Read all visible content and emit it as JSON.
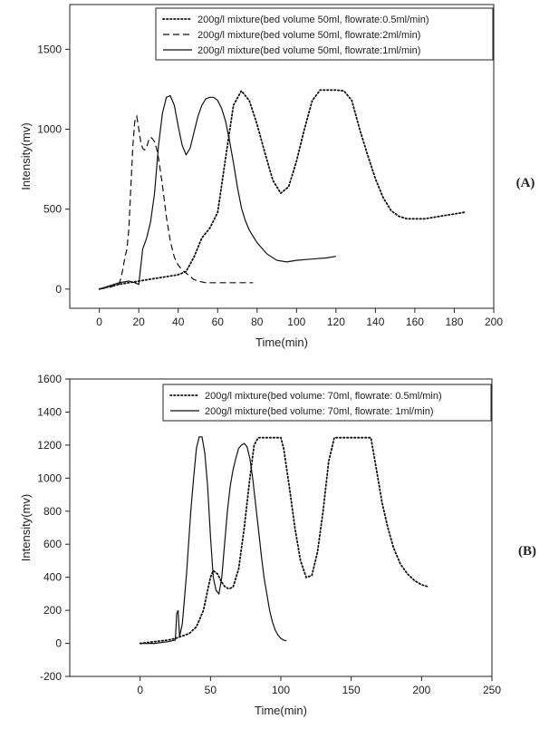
{
  "chart_data": [
    {
      "panel": "(A)",
      "type": "line",
      "title": "",
      "xlabel": "Time(min)",
      "ylabel": "Intensity(mv)",
      "xlim": [
        -15,
        200
      ],
      "ylim": [
        -120,
        1780
      ],
      "x_ticks": [
        0,
        20,
        40,
        60,
        80,
        100,
        120,
        140,
        160,
        180,
        200
      ],
      "y_ticks": [
        0,
        500,
        1000,
        1500
      ],
      "grid": false,
      "legend_position": "top-right",
      "series": [
        {
          "name": "200g/l mixture(bed volume 50ml, flowrate:0.5ml/min)",
          "style": "dotted",
          "x": [
            0,
            10,
            20,
            30,
            40,
            44,
            48,
            52,
            56,
            60,
            64,
            68,
            72,
            76,
            80,
            84,
            88,
            92,
            96,
            100,
            104,
            108,
            112,
            116,
            120,
            124,
            128,
            132,
            136,
            140,
            144,
            148,
            152,
            156,
            160,
            165,
            170,
            175,
            180,
            185
          ],
          "y": [
            0,
            30,
            50,
            70,
            90,
            110,
            200,
            320,
            380,
            480,
            820,
            1150,
            1240,
            1180,
            1030,
            850,
            680,
            600,
            640,
            800,
            1000,
            1180,
            1245,
            1245,
            1245,
            1240,
            1180,
            1000,
            840,
            690,
            570,
            490,
            455,
            440,
            440,
            440,
            450,
            460,
            470,
            480
          ]
        },
        {
          "name": "200g/l mixture(bed volume 50ml, flowrate:2ml/min)",
          "style": "dashed",
          "x": [
            0,
            5,
            10,
            11,
            12,
            13,
            14,
            15,
            16,
            17,
            18,
            19,
            20,
            21,
            22,
            23,
            24,
            25,
            26,
            27,
            28,
            29,
            30,
            32,
            34,
            36,
            38,
            40,
            42,
            44,
            46,
            48,
            50,
            52,
            54,
            56,
            58,
            60,
            62,
            64,
            66,
            68,
            70,
            72,
            74,
            76,
            78
          ],
          "y": [
            0,
            10,
            30,
            70,
            130,
            200,
            250,
            380,
            650,
            900,
            1050,
            1080,
            1000,
            920,
            880,
            870,
            890,
            930,
            950,
            940,
            920,
            880,
            820,
            650,
            450,
            300,
            200,
            150,
            120,
            100,
            80,
            60,
            50,
            45,
            40,
            40,
            40,
            40,
            40,
            40,
            40,
            40,
            40,
            40,
            40,
            40,
            40
          ]
        },
        {
          "name": "200g/l mixture(bed volume 50ml, flowrate:1ml/min)",
          "style": "solid",
          "x": [
            0,
            5,
            10,
            15,
            18,
            20,
            22,
            24,
            26,
            28,
            30,
            32,
            34,
            36,
            38,
            40,
            42,
            44,
            46,
            48,
            50,
            52,
            54,
            56,
            58,
            60,
            62,
            64,
            66,
            68,
            70,
            72,
            74,
            76,
            78,
            80,
            85,
            90,
            95,
            100,
            105,
            110,
            115,
            120
          ],
          "y": [
            0,
            20,
            40,
            50,
            40,
            30,
            250,
            320,
            420,
            600,
            900,
            1100,
            1200,
            1210,
            1150,
            1020,
            900,
            840,
            880,
            980,
            1080,
            1150,
            1190,
            1200,
            1200,
            1180,
            1130,
            1050,
            930,
            790,
            640,
            510,
            430,
            370,
            330,
            290,
            220,
            180,
            170,
            180,
            185,
            190,
            195,
            205
          ]
        }
      ]
    },
    {
      "panel": "(B)",
      "type": "line",
      "title": "",
      "xlabel": "Time(min)",
      "ylabel": "Intensity(mv)",
      "xlim": [
        -50,
        250
      ],
      "ylim": [
        -200,
        1600
      ],
      "x_ticks": [
        0,
        50,
        100,
        150,
        200,
        250
      ],
      "y_ticks": [
        -200,
        0,
        200,
        400,
        600,
        800,
        1000,
        1200,
        1400,
        1600
      ],
      "grid": false,
      "legend_position": "top-right",
      "series": [
        {
          "name": "200g/l mixture(bed volume: 70ml, flowrate: 0.5ml/min)",
          "style": "dotted",
          "x": [
            0,
            10,
            20,
            25,
            30,
            35,
            40,
            45,
            48,
            50,
            52,
            55,
            58,
            60,
            63,
            66,
            70,
            74,
            78,
            81,
            84,
            88,
            94,
            100,
            102,
            106,
            110,
            114,
            118,
            122,
            126,
            130,
            134,
            138,
            142,
            146,
            150,
            155,
            160,
            164,
            168,
            172,
            176,
            180,
            185,
            190,
            195,
            200,
            204
          ],
          "y": [
            0,
            10,
            20,
            30,
            45,
            60,
            100,
            200,
            320,
            400,
            440,
            420,
            370,
            345,
            330,
            340,
            450,
            700,
            1000,
            1200,
            1245,
            1245,
            1245,
            1245,
            1180,
            950,
            700,
            500,
            400,
            410,
            550,
            800,
            1100,
            1245,
            1245,
            1245,
            1245,
            1245,
            1245,
            1245,
            1050,
            850,
            700,
            580,
            480,
            420,
            380,
            355,
            345
          ]
        },
        {
          "name": "200g/l mixture(bed volume: 70ml, flowrate: 1ml/min)",
          "style": "solid",
          "x": [
            0,
            10,
            20,
            25,
            26,
            27,
            28,
            30,
            33,
            36,
            38,
            40,
            42,
            44,
            46,
            48,
            50,
            52,
            54,
            56,
            58,
            60,
            62,
            64,
            66,
            68,
            70,
            72,
            74,
            76,
            78,
            80,
            82,
            84,
            86,
            88,
            90,
            92,
            94,
            96,
            98,
            100,
            102,
            104
          ],
          "y": [
            0,
            0,
            10,
            20,
            180,
            200,
            40,
            120,
            420,
            800,
            1000,
            1180,
            1250,
            1250,
            1150,
            950,
            650,
            400,
            320,
            300,
            400,
            600,
            800,
            950,
            1050,
            1120,
            1180,
            1200,
            1210,
            1190,
            1120,
            1000,
            850,
            700,
            540,
            400,
            300,
            200,
            130,
            80,
            50,
            30,
            20,
            15
          ]
        }
      ]
    }
  ],
  "panels": {
    "a_label": "(A)",
    "b_label": "(B)"
  }
}
